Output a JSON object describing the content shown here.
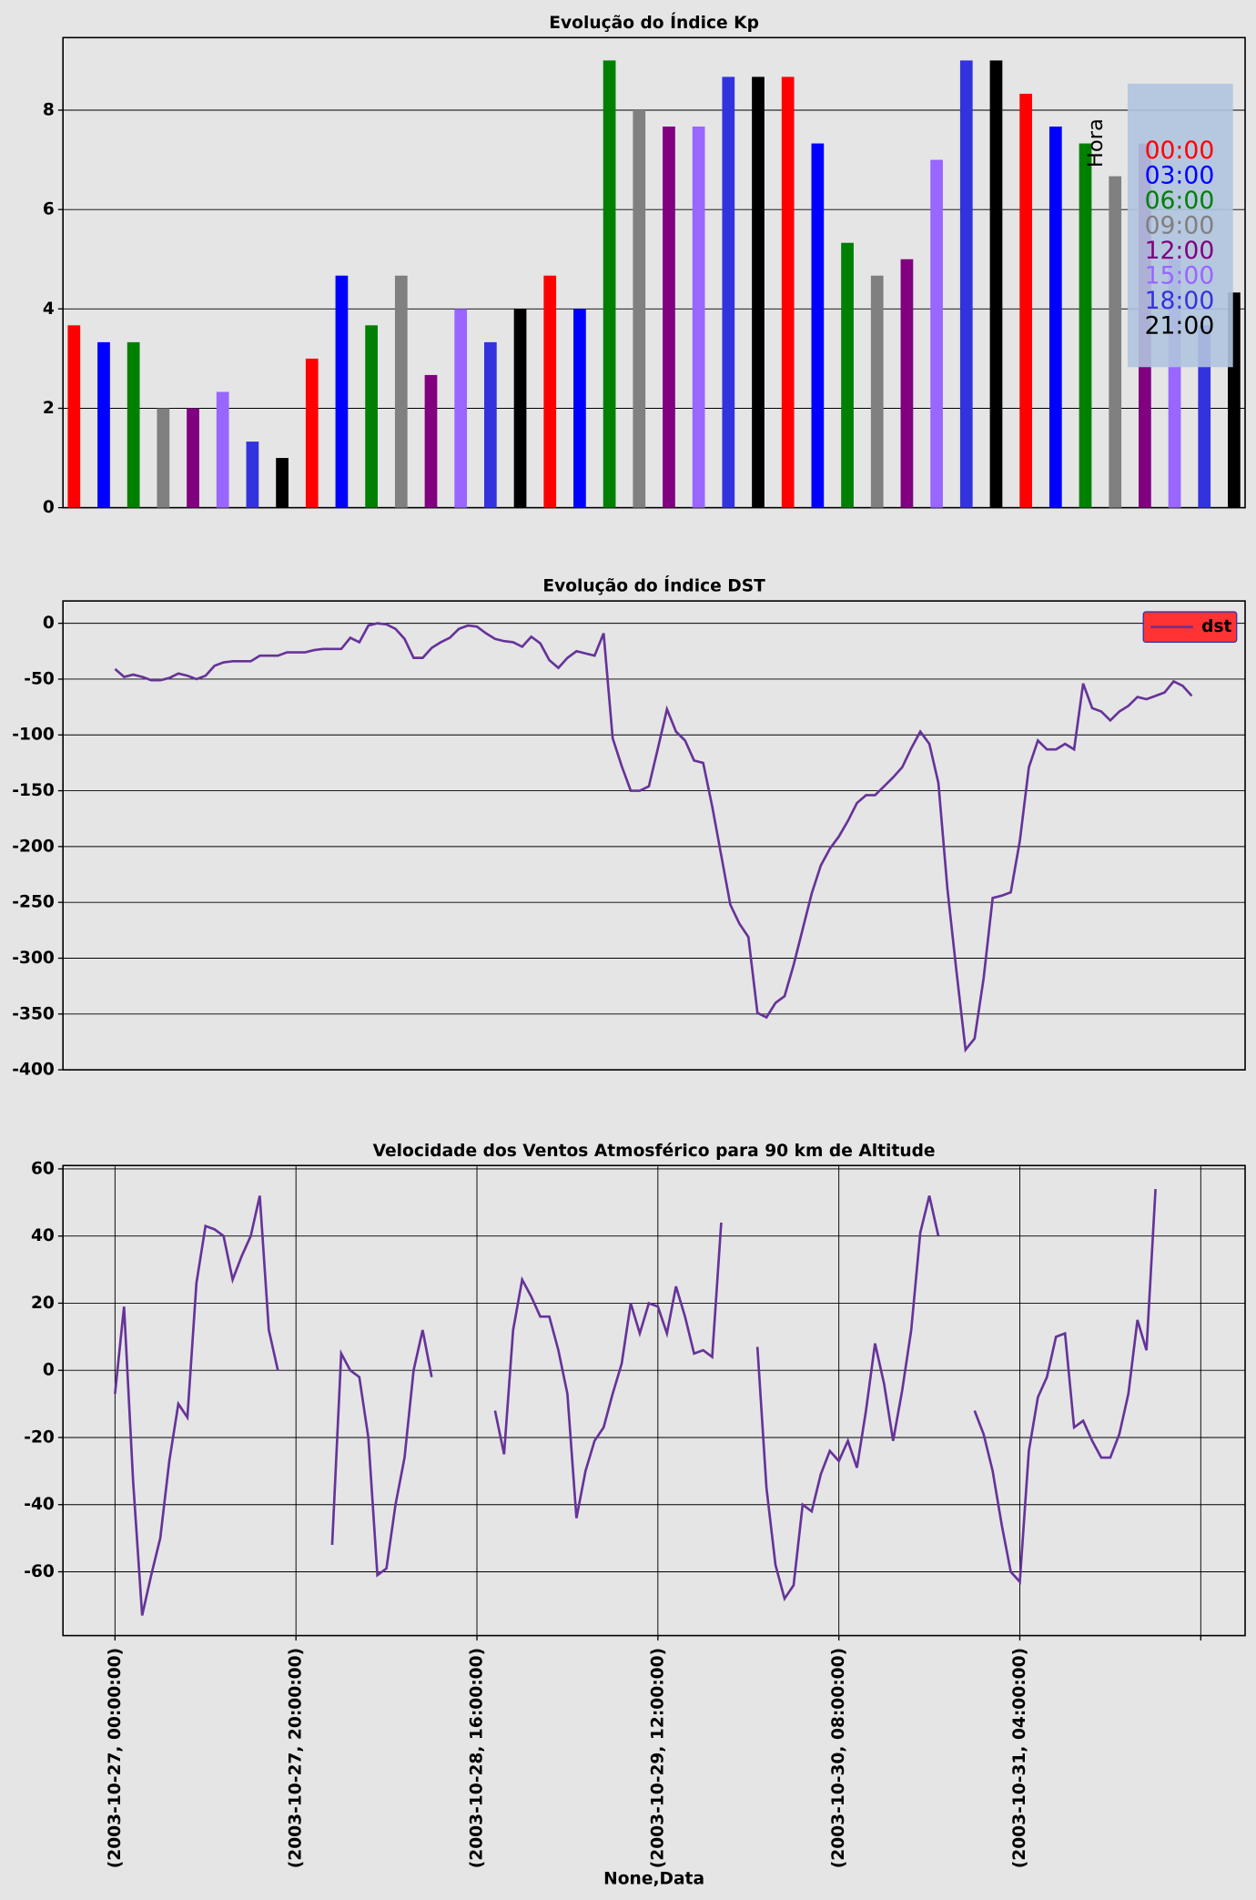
{
  "chart_data": [
    {
      "type": "bar",
      "title": "Evolução do Índice Kp",
      "categories": [
        null,
        null,
        null,
        null,
        null
      ],
      "series": [
        {
          "name": "00:00",
          "color": "#ff0000",
          "values": [
            3.67,
            3,
            4.67,
            8.67,
            8.33
          ]
        },
        {
          "name": "03:00",
          "color": "#0000ff",
          "values": [
            3.33,
            4.67,
            4,
            7.33,
            7.67
          ]
        },
        {
          "name": "06:00",
          "color": "#008000",
          "values": [
            3.33,
            3.67,
            9,
            5.33,
            7.33
          ]
        },
        {
          "name": "09:00",
          "color": "#808080",
          "values": [
            2,
            4.67,
            8,
            4.67,
            6.67
          ]
        },
        {
          "name": "12:00",
          "color": "#800080",
          "values": [
            2,
            2.67,
            7.67,
            5,
            7.33
          ]
        },
        {
          "name": "15:00",
          "color": "#9966ff",
          "values": [
            2.33,
            4,
            7.67,
            7,
            5
          ]
        },
        {
          "name": "18:00",
          "color": "#3333dd",
          "values": [
            1.33,
            3.33,
            8.67,
            9,
            3.67
          ]
        },
        {
          "name": "21:00",
          "color": "#000000",
          "values": [
            1,
            4,
            8.67,
            9,
            4.33
          ]
        }
      ],
      "ylim": [
        0,
        9.46
      ],
      "yticks": [
        0,
        2,
        4,
        6,
        8
      ],
      "grid": true,
      "legend_title": "Hora",
      "legend": "upper right",
      "legend_facecolor": "#b0c4de"
    },
    {
      "type": "line",
      "title": "Evolução do Índice DST",
      "series": [
        {
          "name": "dst",
          "color": "#663399",
          "values": [
            -41,
            -48,
            -46,
            -48,
            -51,
            -51,
            -49,
            -45,
            -47,
            -50,
            -47,
            -38,
            -35,
            -34,
            -34,
            -34,
            -29,
            -29,
            -29,
            -26,
            -26,
            -26,
            -24,
            -23,
            -23,
            -23,
            -13,
            -17,
            -2,
            0,
            -1,
            -5,
            -14,
            -31,
            -31,
            -22,
            -17,
            -13,
            -5,
            -2,
            -3,
            -9,
            -14,
            -16,
            -17,
            -21,
            -12,
            -18,
            -33,
            -40,
            -31,
            -25,
            -27,
            -29,
            -9,
            -103,
            -128,
            -150,
            -150,
            -146,
            -112,
            -77,
            -97,
            -105,
            -123,
            -125,
            -164,
            -208,
            -252,
            -269,
            -281,
            -349,
            -353,
            -340,
            -334,
            -306,
            -274,
            -242,
            -217,
            -202,
            -191,
            -177,
            -161,
            -154,
            -154,
            -146,
            -138,
            -129,
            -112,
            -97,
            -108,
            -143,
            -238,
            -312,
            -382,
            -372,
            -318,
            -246,
            -244,
            -241,
            -195,
            -129,
            -105,
            -113,
            -113,
            -108,
            -113,
            -54,
            -76,
            -79,
            -87,
            -79,
            -74,
            -66,
            -68,
            -65,
            -62,
            -52,
            -56,
            -65
          ]
        }
      ],
      "ylim": [
        -400,
        20
      ],
      "yticks": [
        0,
        -50,
        -100,
        -150,
        -200,
        -250,
        -300,
        -350,
        -400
      ],
      "grid": true,
      "legend": "upper right",
      "legend_facecolor": "#ff3333"
    },
    {
      "type": "line",
      "title": "Velocidade dos Ventos Atmosférico para 90 km de Altitude",
      "xlabel": "None,Data",
      "x": [
        "2003-10-27 00:00:00",
        "2003-10-27 01:00:00",
        "2003-10-27 02:00:00",
        "2003-10-27 03:00:00",
        "2003-10-27 04:00:00",
        "2003-10-27 05:00:00",
        "2003-10-27 06:00:00",
        "2003-10-27 07:00:00",
        "2003-10-27 08:00:00",
        "2003-10-27 09:00:00",
        "2003-10-27 10:00:00",
        "2003-10-27 11:00:00",
        "2003-10-27 12:00:00",
        "2003-10-27 13:00:00",
        "2003-10-27 14:00:00",
        "2003-10-27 15:00:00",
        "2003-10-27 16:00:00",
        "2003-10-27 17:00:00",
        "2003-10-27 18:00:00",
        "2003-10-27 19:00:00",
        "2003-10-27 20:00:00",
        "2003-10-27 21:00:00",
        "2003-10-27 22:00:00",
        "2003-10-27 23:00:00",
        "2003-10-28 00:00:00",
        "2003-10-28 01:00:00",
        "2003-10-28 02:00:00",
        "2003-10-28 03:00:00",
        "2003-10-28 04:00:00",
        "2003-10-28 05:00:00",
        "2003-10-28 06:00:00",
        "2003-10-28 07:00:00",
        "2003-10-28 08:00:00",
        "2003-10-28 09:00:00",
        "2003-10-28 10:00:00",
        "2003-10-28 11:00:00",
        "2003-10-28 12:00:00",
        "2003-10-28 13:00:00",
        "2003-10-28 14:00:00",
        "2003-10-28 15:00:00",
        "2003-10-28 16:00:00",
        "2003-10-28 17:00:00",
        "2003-10-28 18:00:00",
        "2003-10-28 19:00:00",
        "2003-10-28 20:00:00",
        "2003-10-28 21:00:00",
        "2003-10-28 22:00:00",
        "2003-10-28 23:00:00",
        "2003-10-29 00:00:00",
        "2003-10-29 01:00:00",
        "2003-10-29 02:00:00",
        "2003-10-29 03:00:00",
        "2003-10-29 04:00:00",
        "2003-10-29 05:00:00",
        "2003-10-29 06:00:00",
        "2003-10-29 07:00:00",
        "2003-10-29 08:00:00",
        "2003-10-29 09:00:00",
        "2003-10-29 10:00:00",
        "2003-10-29 11:00:00",
        "2003-10-29 12:00:00",
        "2003-10-29 13:00:00",
        "2003-10-29 14:00:00",
        "2003-10-29 15:00:00",
        "2003-10-29 16:00:00",
        "2003-10-29 17:00:00",
        "2003-10-29 18:00:00",
        "2003-10-29 19:00:00",
        "2003-10-29 20:00:00",
        "2003-10-29 21:00:00",
        "2003-10-29 22:00:00",
        "2003-10-29 23:00:00",
        "2003-10-30 00:00:00",
        "2003-10-30 01:00:00",
        "2003-10-30 02:00:00",
        "2003-10-30 03:00:00",
        "2003-10-30 04:00:00",
        "2003-10-30 05:00:00",
        "2003-10-30 06:00:00",
        "2003-10-30 07:00:00",
        "2003-10-30 08:00:00",
        "2003-10-30 09:00:00",
        "2003-10-30 10:00:00",
        "2003-10-30 11:00:00",
        "2003-10-30 12:00:00",
        "2003-10-30 13:00:00",
        "2003-10-30 14:00:00",
        "2003-10-30 15:00:00",
        "2003-10-30 16:00:00",
        "2003-10-30 17:00:00",
        "2003-10-30 18:00:00",
        "2003-10-30 19:00:00",
        "2003-10-30 20:00:00",
        "2003-10-30 21:00:00",
        "2003-10-30 22:00:00",
        "2003-10-30 23:00:00",
        "2003-10-31 00:00:00",
        "2003-10-31 01:00:00",
        "2003-10-31 02:00:00",
        "2003-10-31 03:00:00",
        "2003-10-31 04:00:00",
        "2003-10-31 05:00:00",
        "2003-10-31 06:00:00",
        "2003-10-31 07:00:00",
        "2003-10-31 08:00:00",
        "2003-10-31 09:00:00",
        "2003-10-31 10:00:00",
        "2003-10-31 11:00:00",
        "2003-10-31 12:00:00",
        "2003-10-31 13:00:00",
        "2003-10-31 14:00:00",
        "2003-10-31 15:00:00",
        "2003-10-31 16:00:00",
        "2003-10-31 17:00:00",
        "2003-10-31 18:00:00",
        "2003-10-31 19:00:00"
      ],
      "series": [
        {
          "color": "#663399",
          "values": [
            -7,
            19,
            -33,
            -73,
            -61,
            -50,
            -27,
            -10,
            -14,
            26,
            43,
            42,
            40,
            27,
            34,
            40,
            52,
            12,
            0,
            null,
            null,
            null,
            null,
            null,
            -52,
            5,
            0,
            -2,
            -20,
            -61,
            -59,
            -40,
            -26,
            0,
            12,
            -2,
            null,
            null,
            null,
            null,
            null,
            null,
            -12,
            -25,
            12,
            27,
            22,
            16,
            16,
            6,
            -7,
            -44,
            -30,
            -21,
            -17,
            -7,
            2,
            20,
            11,
            20,
            19,
            11,
            25,
            16,
            5,
            6,
            4,
            44,
            null,
            null,
            null,
            7,
            -35,
            -58,
            -68,
            -64,
            -40,
            -42,
            -31,
            -24,
            -27,
            -21,
            -29,
            -12,
            8,
            -4,
            -21,
            -6,
            12,
            41,
            52,
            40,
            null,
            null,
            null,
            -12,
            -19,
            -30,
            -46,
            -60,
            -63,
            -24,
            -8,
            -2,
            10,
            11,
            -17,
            -15,
            -21,
            -26,
            -26,
            -19,
            -7,
            15,
            6,
            54
          ]
        }
      ],
      "xlim": [
        "2003-10-26 18:15:00",
        "2003-11-01 04:54:00"
      ],
      "xticks": [
        {
          "value": "2003-10-27 00:00:00",
          "label": "(2003-10-27, 00:00:00)"
        },
        {
          "value": "2003-10-27 20:00:00",
          "label": "(2003-10-27, 20:00:00)"
        },
        {
          "value": "2003-10-28 16:00:00",
          "label": "(2003-10-28, 16:00:00)"
        },
        {
          "value": "2003-10-29 12:00:00",
          "label": "(2003-10-29, 12:00:00)"
        },
        {
          "value": "2003-10-30 08:00:00",
          "label": "(2003-10-30, 08:00:00)"
        },
        {
          "value": "2003-10-31 04:00:00",
          "label": "(2003-10-31, 04:00:00)"
        },
        {
          "value": "2003-11-01 00:00:00",
          "label": null
        }
      ],
      "ylim": [
        -79,
        61
      ],
      "yticks": [
        -60,
        -40,
        -20,
        0,
        20,
        40,
        60
      ],
      "grid": true
    }
  ]
}
